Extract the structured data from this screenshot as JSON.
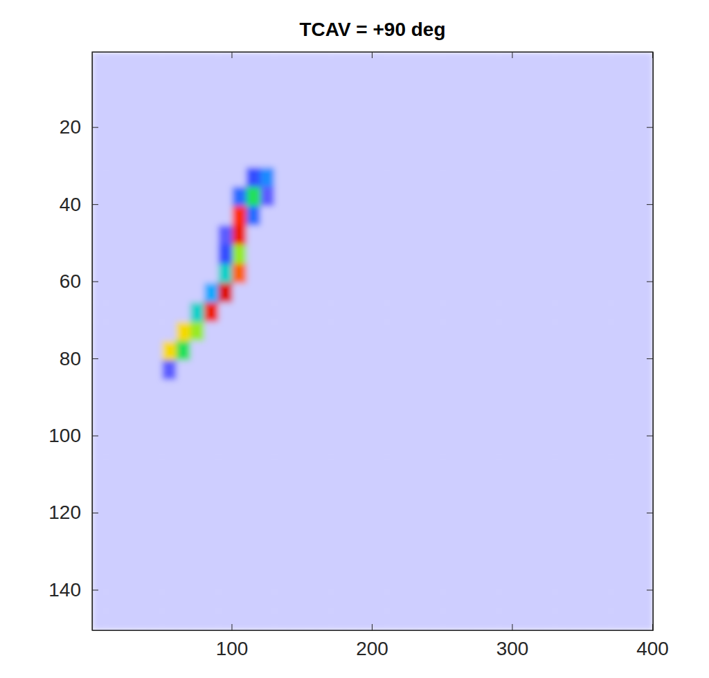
{
  "chart_data": {
    "type": "heatmap",
    "title": "TCAV = +90 deg",
    "xlim": [
      0.5,
      400.5
    ],
    "ylim": [
      0.5,
      150.5
    ],
    "xticks": [
      100,
      200,
      300,
      400
    ],
    "yticks": [
      20,
      40,
      60,
      80,
      100,
      120,
      140
    ],
    "zlim": [
      0,
      100
    ],
    "x_edges": [
      0.5,
      10.5,
      20.5,
      30.5,
      40.5,
      50.5,
      60.5,
      70.5,
      80.5,
      90.5,
      100.5,
      110.5,
      120.5,
      130.5,
      140.5,
      150.5,
      160.5,
      170.5,
      180.5,
      190.5,
      200.5,
      210.5,
      220.5,
      230.5,
      240.5,
      250.5,
      260.5,
      270.5,
      280.5,
      290.5,
      300.5,
      310.5,
      320.5,
      330.5,
      340.5,
      350.5,
      360.5,
      370.5,
      380.5,
      390.5,
      400.5
    ],
    "y_edges": [
      0.5,
      5.5,
      10.5,
      15.5,
      20.5,
      25.5,
      30.5,
      35.5,
      40.5,
      45.5,
      50.5,
      55.5,
      60.5,
      65.5,
      70.5,
      75.5,
      80.5,
      85.5,
      90.5,
      95.5,
      100.5,
      105.5,
      110.5,
      115.5,
      120.5,
      125.5,
      130.5,
      135.5,
      140.5,
      145.5,
      150.5
    ],
    "z": [
      [
        3,
        3,
        3,
        3,
        3,
        3,
        3,
        3,
        3,
        3,
        3,
        3,
        3,
        3,
        3,
        3,
        3,
        3,
        3,
        3,
        3,
        3,
        3,
        3,
        3,
        3,
        3,
        3,
        3,
        3,
        3,
        3,
        3,
        3,
        3,
        3,
        3,
        3,
        3,
        3
      ],
      [
        3,
        3,
        3,
        3,
        3,
        3,
        3,
        3,
        3,
        3,
        3,
        3,
        3,
        3,
        3,
        3,
        3,
        3,
        3,
        3,
        3,
        3,
        3,
        3,
        3,
        3,
        3,
        3,
        3,
        3,
        3,
        3,
        3,
        3,
        3,
        3,
        3,
        3,
        3,
        3
      ],
      [
        3,
        3,
        3,
        3,
        3,
        3,
        3,
        3,
        3,
        3,
        3,
        3,
        3,
        3,
        3,
        3,
        3,
        3,
        3,
        3,
        3,
        3,
        3,
        3,
        3,
        3,
        3,
        3,
        3,
        3,
        3,
        3,
        3,
        3,
        3,
        3,
        3,
        3,
        3,
        3
      ],
      [
        3,
        3,
        3,
        3,
        3,
        3,
        3,
        3,
        3,
        3,
        3,
        3,
        3,
        3,
        3,
        3,
        3,
        3,
        3,
        3,
        3,
        3,
        3,
        3,
        3,
        3,
        3,
        3,
        3,
        3,
        3,
        3,
        3,
        3,
        3,
        3,
        3,
        3,
        3,
        3
      ],
      [
        3,
        3,
        3,
        3,
        3,
        3,
        3,
        3,
        3,
        3,
        3,
        3,
        3,
        3,
        3,
        3,
        3,
        3,
        3,
        3,
        3,
        3,
        3,
        3,
        3,
        3,
        3,
        3,
        3,
        3,
        3,
        3,
        3,
        3,
        3,
        3,
        3,
        3,
        3,
        3
      ],
      [
        3,
        3,
        3,
        3,
        3,
        3,
        3,
        3,
        3,
        3,
        3,
        3,
        3,
        3,
        3,
        3,
        3,
        3,
        3,
        3,
        3,
        3,
        3,
        3,
        3,
        3,
        3,
        3,
        3,
        3,
        3,
        3,
        3,
        3,
        3,
        3,
        3,
        3,
        3,
        3
      ],
      [
        3,
        3,
        3,
        3,
        3,
        3,
        3,
        3,
        3,
        3,
        3,
        15,
        25,
        3,
        3,
        3,
        3,
        3,
        3,
        3,
        3,
        3,
        3,
        3,
        3,
        3,
        3,
        3,
        3,
        3,
        3,
        3,
        3,
        3,
        3,
        3,
        3,
        3,
        3,
        3
      ],
      [
        3,
        3,
        3,
        3,
        3,
        3,
        3,
        3,
        3,
        3,
        20,
        50,
        10,
        3,
        3,
        3,
        3,
        3,
        3,
        3,
        3,
        3,
        3,
        3,
        3,
        3,
        3,
        3,
        3,
        3,
        3,
        3,
        3,
        3,
        3,
        3,
        3,
        3,
        3,
        3
      ],
      [
        3,
        3,
        3,
        3,
        3,
        3,
        3,
        3,
        3,
        3,
        85,
        20,
        3,
        3,
        3,
        3,
        3,
        3,
        3,
        3,
        3,
        3,
        3,
        3,
        3,
        3,
        3,
        3,
        3,
        3,
        3,
        3,
        3,
        3,
        3,
        3,
        3,
        3,
        3,
        3
      ],
      [
        3,
        3,
        3,
        3,
        3,
        3,
        3,
        3,
        3,
        10,
        90,
        3,
        3,
        3,
        3,
        3,
        3,
        3,
        3,
        3,
        3,
        3,
        3,
        3,
        3,
        3,
        3,
        3,
        3,
        3,
        3,
        3,
        3,
        3,
        3,
        3,
        3,
        3,
        3,
        3
      ],
      [
        3,
        3,
        3,
        3,
        3,
        3,
        3,
        3,
        3,
        15,
        60,
        3,
        3,
        3,
        3,
        3,
        3,
        3,
        3,
        3,
        3,
        3,
        3,
        3,
        3,
        3,
        3,
        3,
        3,
        3,
        3,
        3,
        3,
        3,
        3,
        3,
        3,
        3,
        3,
        3
      ],
      [
        3,
        3,
        3,
        3,
        3,
        3,
        3,
        3,
        3,
        40,
        80,
        3,
        3,
        3,
        3,
        3,
        3,
        3,
        3,
        3,
        3,
        3,
        3,
        3,
        3,
        3,
        3,
        3,
        3,
        3,
        3,
        3,
        3,
        3,
        3,
        3,
        3,
        3,
        3,
        3
      ],
      [
        3,
        3,
        3,
        3,
        3,
        3,
        3,
        3,
        30,
        95,
        3,
        3,
        3,
        3,
        3,
        3,
        3,
        3,
        3,
        3,
        3,
        3,
        3,
        3,
        3,
        3,
        3,
        3,
        3,
        3,
        3,
        3,
        3,
        3,
        3,
        3,
        3,
        3,
        3,
        3
      ],
      [
        3,
        3,
        3,
        3,
        3,
        3,
        3,
        40,
        90,
        3,
        3,
        3,
        3,
        3,
        3,
        3,
        3,
        3,
        3,
        3,
        3,
        3,
        3,
        3,
        3,
        3,
        3,
        3,
        3,
        3,
        3,
        3,
        3,
        3,
        3,
        3,
        3,
        3,
        3,
        3
      ],
      [
        3,
        3,
        3,
        3,
        3,
        3,
        70,
        60,
        3,
        3,
        3,
        3,
        3,
        3,
        3,
        3,
        3,
        3,
        3,
        3,
        3,
        3,
        3,
        3,
        3,
        3,
        3,
        3,
        3,
        3,
        3,
        3,
        3,
        3,
        3,
        3,
        3,
        3,
        3,
        3
      ],
      [
        3,
        3,
        3,
        3,
        3,
        70,
        50,
        3,
        3,
        3,
        3,
        3,
        3,
        3,
        3,
        3,
        3,
        3,
        3,
        3,
        3,
        3,
        3,
        3,
        3,
        3,
        3,
        3,
        3,
        3,
        3,
        3,
        3,
        3,
        3,
        3,
        3,
        3,
        3,
        3
      ],
      [
        3,
        3,
        3,
        3,
        3,
        10,
        3,
        3,
        3,
        3,
        3,
        3,
        3,
        3,
        3,
        3,
        3,
        3,
        3,
        3,
        3,
        3,
        3,
        3,
        3,
        3,
        3,
        3,
        3,
        3,
        3,
        3,
        3,
        3,
        3,
        3,
        3,
        3,
        3,
        3
      ],
      [
        3,
        3,
        3,
        3,
        3,
        3,
        3,
        3,
        3,
        3,
        3,
        3,
        3,
        3,
        3,
        3,
        3,
        3,
        3,
        3,
        3,
        3,
        3,
        3,
        3,
        3,
        3,
        3,
        3,
        3,
        3,
        3,
        3,
        3,
        3,
        3,
        3,
        3,
        3,
        3
      ],
      [
        3,
        3,
        3,
        3,
        3,
        3,
        3,
        3,
        3,
        3,
        3,
        3,
        3,
        3,
        3,
        3,
        3,
        3,
        3,
        3,
        3,
        3,
        3,
        3,
        3,
        3,
        3,
        3,
        3,
        3,
        3,
        3,
        3,
        3,
        3,
        3,
        3,
        3,
        3,
        3
      ],
      [
        3,
        3,
        3,
        3,
        3,
        3,
        3,
        3,
        3,
        3,
        3,
        3,
        3,
        3,
        3,
        3,
        3,
        3,
        3,
        3,
        3,
        3,
        3,
        3,
        3,
        3,
        3,
        3,
        3,
        3,
        3,
        3,
        3,
        3,
        3,
        3,
        3,
        3,
        3,
        3
      ],
      [
        3,
        3,
        3,
        3,
        3,
        3,
        3,
        3,
        3,
        3,
        3,
        3,
        3,
        3,
        3,
        3,
        3,
        3,
        3,
        3,
        3,
        3,
        3,
        3,
        3,
        3,
        3,
        3,
        3,
        3,
        3,
        3,
        3,
        3,
        3,
        3,
        3,
        3,
        3,
        3
      ],
      [
        3,
        3,
        3,
        3,
        3,
        3,
        3,
        3,
        3,
        3,
        3,
        3,
        3,
        3,
        3,
        3,
        3,
        3,
        3,
        3,
        3,
        3,
        3,
        3,
        3,
        3,
        3,
        3,
        3,
        3,
        3,
        3,
        3,
        3,
        3,
        3,
        3,
        3,
        3,
        3
      ],
      [
        3,
        3,
        3,
        3,
        3,
        3,
        3,
        3,
        3,
        3,
        3,
        3,
        3,
        3,
        3,
        3,
        3,
        3,
        3,
        3,
        3,
        3,
        3,
        3,
        3,
        3,
        3,
        3,
        3,
        3,
        3,
        3,
        3,
        3,
        3,
        3,
        3,
        3,
        3,
        3
      ],
      [
        3,
        3,
        3,
        3,
        3,
        3,
        3,
        3,
        3,
        3,
        3,
        3,
        3,
        3,
        3,
        3,
        3,
        3,
        3,
        3,
        3,
        3,
        3,
        3,
        3,
        3,
        3,
        3,
        3,
        3,
        3,
        3,
        3,
        3,
        3,
        3,
        3,
        3,
        3,
        3
      ],
      [
        3,
        3,
        3,
        3,
        3,
        3,
        3,
        3,
        3,
        3,
        3,
        3,
        3,
        3,
        3,
        3,
        3,
        3,
        3,
        3,
        3,
        3,
        3,
        3,
        3,
        3,
        3,
        3,
        3,
        3,
        3,
        3,
        3,
        3,
        3,
        3,
        3,
        3,
        3,
        3
      ],
      [
        3,
        3,
        3,
        3,
        3,
        3,
        3,
        3,
        3,
        3,
        3,
        3,
        3,
        3,
        3,
        3,
        3,
        3,
        3,
        3,
        3,
        3,
        3,
        3,
        3,
        3,
        3,
        3,
        3,
        3,
        3,
        3,
        3,
        3,
        3,
        3,
        3,
        3,
        3,
        3
      ],
      [
        3,
        3,
        3,
        3,
        3,
        3,
        3,
        3,
        3,
        3,
        3,
        3,
        3,
        3,
        3,
        3,
        3,
        3,
        3,
        3,
        3,
        3,
        3,
        3,
        3,
        3,
        3,
        3,
        3,
        3,
        3,
        3,
        3,
        3,
        3,
        3,
        3,
        3,
        3,
        3
      ],
      [
        3,
        3,
        3,
        3,
        3,
        3,
        3,
        3,
        3,
        3,
        3,
        3,
        3,
        3,
        3,
        3,
        3,
        3,
        3,
        3,
        3,
        3,
        3,
        3,
        3,
        3,
        3,
        3,
        3,
        3,
        3,
        3,
        3,
        3,
        3,
        3,
        3,
        3,
        3,
        3
      ],
      [
        3,
        3,
        3,
        3,
        3,
        3,
        3,
        3,
        3,
        3,
        3,
        3,
        3,
        3,
        3,
        3,
        3,
        3,
        3,
        3,
        3,
        3,
        3,
        3,
        3,
        3,
        3,
        3,
        3,
        3,
        3,
        3,
        3,
        3,
        3,
        3,
        3,
        3,
        3,
        3
      ],
      [
        3,
        3,
        3,
        3,
        3,
        3,
        3,
        3,
        3,
        3,
        3,
        3,
        3,
        3,
        3,
        3,
        3,
        3,
        3,
        3,
        3,
        3,
        3,
        3,
        3,
        3,
        3,
        3,
        3,
        3,
        3,
        3,
        3,
        3,
        3,
        3,
        3,
        3,
        3,
        3
      ]
    ]
  }
}
